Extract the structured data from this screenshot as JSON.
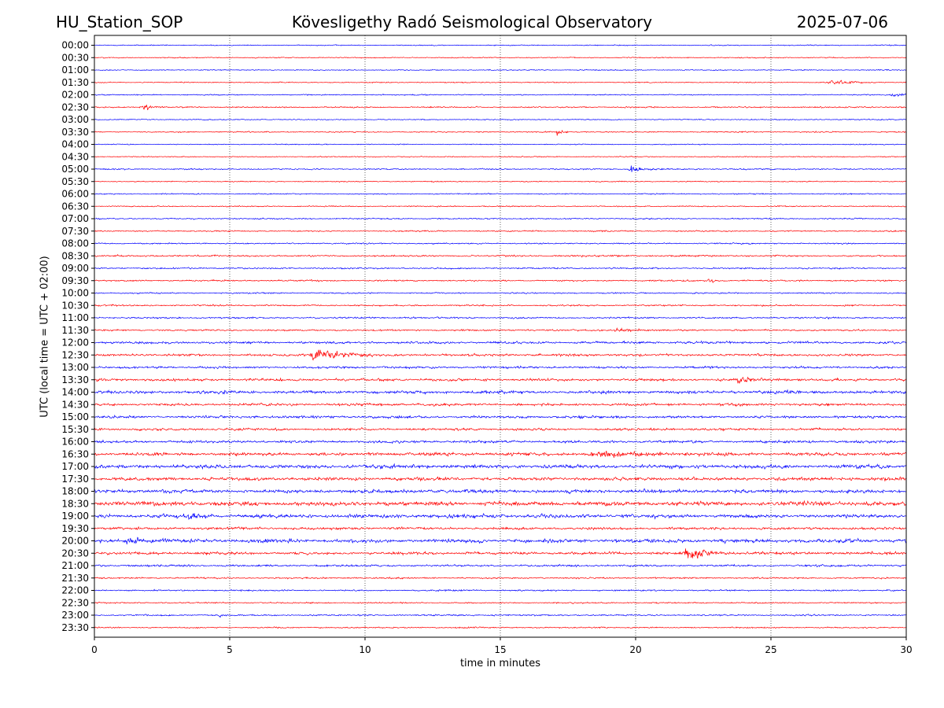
{
  "header": {
    "station": "HU_Station_SOP",
    "observatory": "Kövesligethy Radó Seismological Observatory",
    "date": "2025-07-06"
  },
  "chart_data": {
    "type": "line",
    "xlabel": "time in minutes",
    "ylabel": "UTC (local time = UTC + 02:00)",
    "xlim": [
      0,
      30
    ],
    "x_ticks": [
      0,
      5,
      10,
      15,
      20,
      25,
      30
    ],
    "x_tick_labels": [
      "0",
      "5",
      "10",
      "15",
      "20",
      "25",
      "30"
    ],
    "grid_x": true,
    "colors": {
      "even_row": "#0000ff",
      "odd_row": "#ff0000",
      "grid": "#000000"
    },
    "rows": [
      {
        "label": "00:00",
        "noise": 0.6,
        "events": []
      },
      {
        "label": "00:30",
        "noise": 0.6,
        "events": []
      },
      {
        "label": "01:00",
        "noise": 0.6,
        "events": []
      },
      {
        "label": "01:30",
        "noise": 0.6,
        "events": [
          {
            "t": 27.2,
            "amp": 4,
            "dur": 0.8
          }
        ]
      },
      {
        "label": "02:00",
        "noise": 0.7,
        "events": [
          {
            "t": 29.5,
            "amp": 3,
            "dur": 0.5
          }
        ]
      },
      {
        "label": "02:30",
        "noise": 0.8,
        "events": [
          {
            "t": 1.8,
            "amp": 4,
            "dur": 0.4
          }
        ]
      },
      {
        "label": "03:00",
        "noise": 0.6,
        "events": []
      },
      {
        "label": "03:30",
        "noise": 0.7,
        "events": [
          {
            "t": 17.1,
            "amp": 6,
            "dur": 0.2
          }
        ]
      },
      {
        "label": "04:00",
        "noise": 0.6,
        "events": []
      },
      {
        "label": "04:30",
        "noise": 0.6,
        "events": []
      },
      {
        "label": "05:00",
        "noise": 0.8,
        "events": [
          {
            "t": 19.8,
            "amp": 4,
            "dur": 0.6
          }
        ]
      },
      {
        "label": "05:30",
        "noise": 0.6,
        "events": []
      },
      {
        "label": "06:00",
        "noise": 0.7,
        "events": []
      },
      {
        "label": "06:30",
        "noise": 0.7,
        "events": []
      },
      {
        "label": "07:00",
        "noise": 0.8,
        "events": []
      },
      {
        "label": "07:30",
        "noise": 0.8,
        "events": []
      },
      {
        "label": "08:00",
        "noise": 0.8,
        "events": []
      },
      {
        "label": "08:30",
        "noise": 1.0,
        "events": []
      },
      {
        "label": "09:00",
        "noise": 0.9,
        "events": []
      },
      {
        "label": "09:30",
        "noise": 0.9,
        "events": [
          {
            "t": 22.7,
            "amp": 5,
            "dur": 0.2
          }
        ]
      },
      {
        "label": "10:00",
        "noise": 0.8,
        "events": []
      },
      {
        "label": "10:30",
        "noise": 0.9,
        "events": []
      },
      {
        "label": "11:00",
        "noise": 1.0,
        "events": []
      },
      {
        "label": "11:30",
        "noise": 1.0,
        "events": [
          {
            "t": 19.3,
            "amp": 4,
            "dur": 0.6
          }
        ]
      },
      {
        "label": "12:00",
        "noise": 1.4,
        "events": []
      },
      {
        "label": "12:30",
        "noise": 1.4,
        "events": [
          {
            "t": 8.1,
            "amp": 11,
            "dur": 1.2
          }
        ]
      },
      {
        "label": "13:00",
        "noise": 1.3,
        "events": []
      },
      {
        "label": "13:30",
        "noise": 1.6,
        "events": [
          {
            "t": 23.8,
            "amp": 7,
            "dur": 0.5
          }
        ]
      },
      {
        "label": "14:00",
        "noise": 1.8,
        "events": []
      },
      {
        "label": "14:30",
        "noise": 1.5,
        "events": []
      },
      {
        "label": "15:00",
        "noise": 1.5,
        "events": []
      },
      {
        "label": "15:30",
        "noise": 1.4,
        "events": []
      },
      {
        "label": "16:00",
        "noise": 1.5,
        "events": []
      },
      {
        "label": "16:30",
        "noise": 1.9,
        "events": [
          {
            "t": 18.5,
            "amp": 4,
            "dur": 2.0
          }
        ]
      },
      {
        "label": "17:00",
        "noise": 2.2,
        "events": []
      },
      {
        "label": "17:30",
        "noise": 2.0,
        "events": []
      },
      {
        "label": "18:00",
        "noise": 2.1,
        "events": []
      },
      {
        "label": "18:30",
        "noise": 2.6,
        "events": []
      },
      {
        "label": "19:00",
        "noise": 2.2,
        "events": [
          {
            "t": 3.5,
            "amp": 4,
            "dur": 0.4
          }
        ]
      },
      {
        "label": "19:30",
        "noise": 1.5,
        "events": []
      },
      {
        "label": "20:00",
        "noise": 2.2,
        "events": [
          {
            "t": 1.2,
            "amp": 5,
            "dur": 0.6
          }
        ]
      },
      {
        "label": "20:30",
        "noise": 1.6,
        "events": [
          {
            "t": 21.9,
            "amp": 8,
            "dur": 0.8
          }
        ]
      },
      {
        "label": "21:00",
        "noise": 1.2,
        "events": []
      },
      {
        "label": "21:30",
        "noise": 0.9,
        "events": []
      },
      {
        "label": "22:00",
        "noise": 0.9,
        "events": []
      },
      {
        "label": "22:30",
        "noise": 0.8,
        "events": []
      },
      {
        "label": "23:00",
        "noise": 0.9,
        "events": [
          {
            "t": 4.6,
            "amp": 4,
            "dur": 0.1
          }
        ]
      },
      {
        "label": "23:30",
        "noise": 0.8,
        "events": []
      }
    ]
  }
}
